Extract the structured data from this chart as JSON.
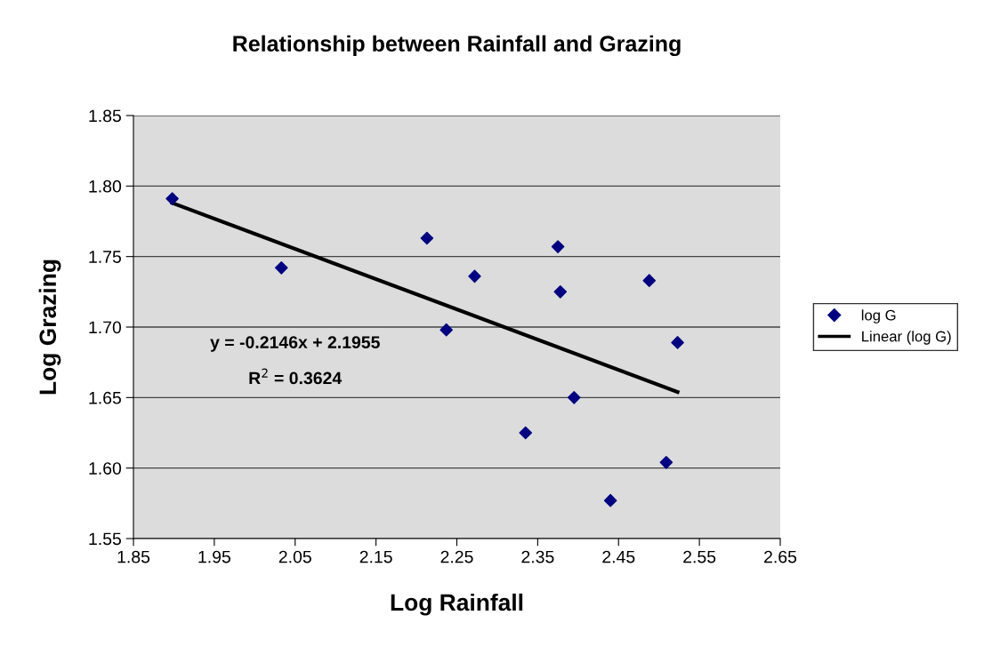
{
  "chart_data": {
    "type": "scatter",
    "title": "Relationship between Rainfall and Grazing",
    "xlabel": "Log Rainfall",
    "ylabel": "Log Grazing",
    "series": [
      {
        "name": "log G",
        "color": "#000080",
        "marker": "diamond",
        "x": [
          1.898,
          2.033,
          2.213,
          2.237,
          2.272,
          2.335,
          2.375,
          2.378,
          2.395,
          2.44,
          2.488,
          2.509,
          2.523
        ],
        "values": [
          1.791,
          1.742,
          1.763,
          1.698,
          1.736,
          1.625,
          1.757,
          1.725,
          1.65,
          1.577,
          1.733,
          1.604,
          1.689
        ]
      },
      {
        "name": "Linear (log G)",
        "type": "line",
        "color": "#000000",
        "marker": "none",
        "line_style": "solid",
        "x": [
          1.898,
          2.523
        ],
        "values": [
          1.788,
          1.654
        ]
      }
    ],
    "annotations": [
      "y = -0.2146x + 2.1955",
      "R$^{2}$ = 0.3624"
    ],
    "xlim": [
      1.85,
      2.65
    ],
    "ylim": [
      1.55,
      1.85
    ],
    "xticks": [
      1.85,
      1.95,
      2.05,
      2.15,
      2.25,
      2.35,
      2.45,
      2.55,
      2.65
    ],
    "yticks": [
      1.55,
      {
        "value": 1.6,
        "label": "1.60"
      },
      1.65,
      {
        "value": 1.7,
        "label": "1.70"
      },
      1.75,
      {
        "value": 1.8,
        "label": "1.80"
      },
      1.85
    ],
    "grid": "y",
    "legend": "right"
  }
}
